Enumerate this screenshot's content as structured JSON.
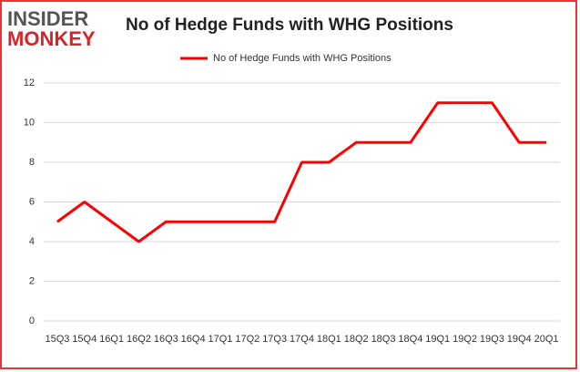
{
  "logo": {
    "line1": "INSIDER",
    "line2": "MONKEY"
  },
  "chart_data": {
    "type": "line",
    "title": "No of Hedge Funds with WHG Positions",
    "categories": [
      "15Q3",
      "15Q4",
      "16Q1",
      "16Q2",
      "16Q3",
      "16Q4",
      "17Q1",
      "17Q2",
      "17Q3",
      "17Q4",
      "18Q1",
      "18Q2",
      "18Q3",
      "18Q4",
      "19Q1",
      "19Q2",
      "19Q3",
      "19Q4",
      "20Q1"
    ],
    "series": [
      {
        "name": "No of Hedge Funds with WHG Positions",
        "color": "#ff0000",
        "values": [
          5,
          6,
          5,
          4,
          5,
          5,
          5,
          5,
          5,
          8,
          8,
          9,
          9,
          9,
          11,
          11,
          11,
          9,
          9
        ]
      }
    ],
    "ylim": [
      0,
      12
    ],
    "yticks": [
      0,
      2,
      4,
      6,
      8,
      10,
      12
    ],
    "grid": true,
    "legend": "top"
  }
}
